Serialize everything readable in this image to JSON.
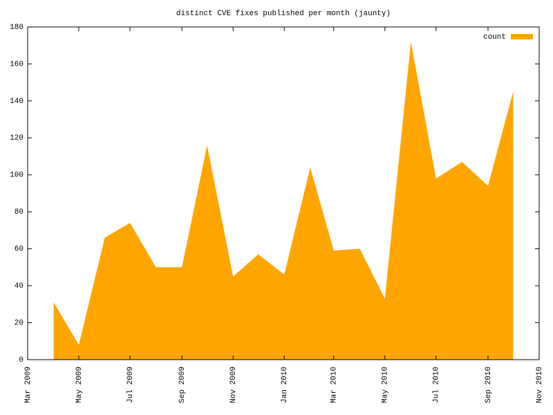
{
  "chart_data": {
    "type": "area",
    "title": "distinct CVE fixes published per month (jaunty)",
    "x": [
      "2009-04",
      "2009-05",
      "2009-06",
      "2009-07",
      "2009-08",
      "2009-09",
      "2009-10",
      "2009-11",
      "2009-12",
      "2010-01",
      "2010-02",
      "2010-03",
      "2010-04",
      "2010-05",
      "2010-06",
      "2010-07",
      "2010-08",
      "2010-09",
      "2010-10"
    ],
    "series": [
      {
        "name": "count",
        "color": "#ffa500",
        "values": [
          31,
          8,
          66,
          74,
          50,
          50,
          116,
          45,
          57,
          46,
          104,
          59,
          60,
          33,
          172,
          98,
          107,
          94,
          145
        ]
      }
    ],
    "xlim": [
      "2009-03",
      "2010-11"
    ],
    "xticks": [
      {
        "value": "2009-03",
        "label": "Mar 2009"
      },
      {
        "value": "2009-05",
        "label": "May 2009"
      },
      {
        "value": "2009-07",
        "label": "Jul 2009"
      },
      {
        "value": "2009-09",
        "label": "Sep 2009"
      },
      {
        "value": "2009-11",
        "label": "Nov 2009"
      },
      {
        "value": "2010-01",
        "label": "Jan 2010"
      },
      {
        "value": "2010-03",
        "label": "Mar 2010"
      },
      {
        "value": "2010-05",
        "label": "May 2010"
      },
      {
        "value": "2010-07",
        "label": "Jul 2010"
      },
      {
        "value": "2010-09",
        "label": "Sep 2010"
      },
      {
        "value": "2010-11",
        "label": "Nov 2010"
      }
    ],
    "ylim": [
      0,
      180
    ],
    "yticks": [
      0,
      20,
      40,
      60,
      80,
      100,
      120,
      140,
      160,
      180
    ],
    "legend": "top-right",
    "grid": false
  }
}
